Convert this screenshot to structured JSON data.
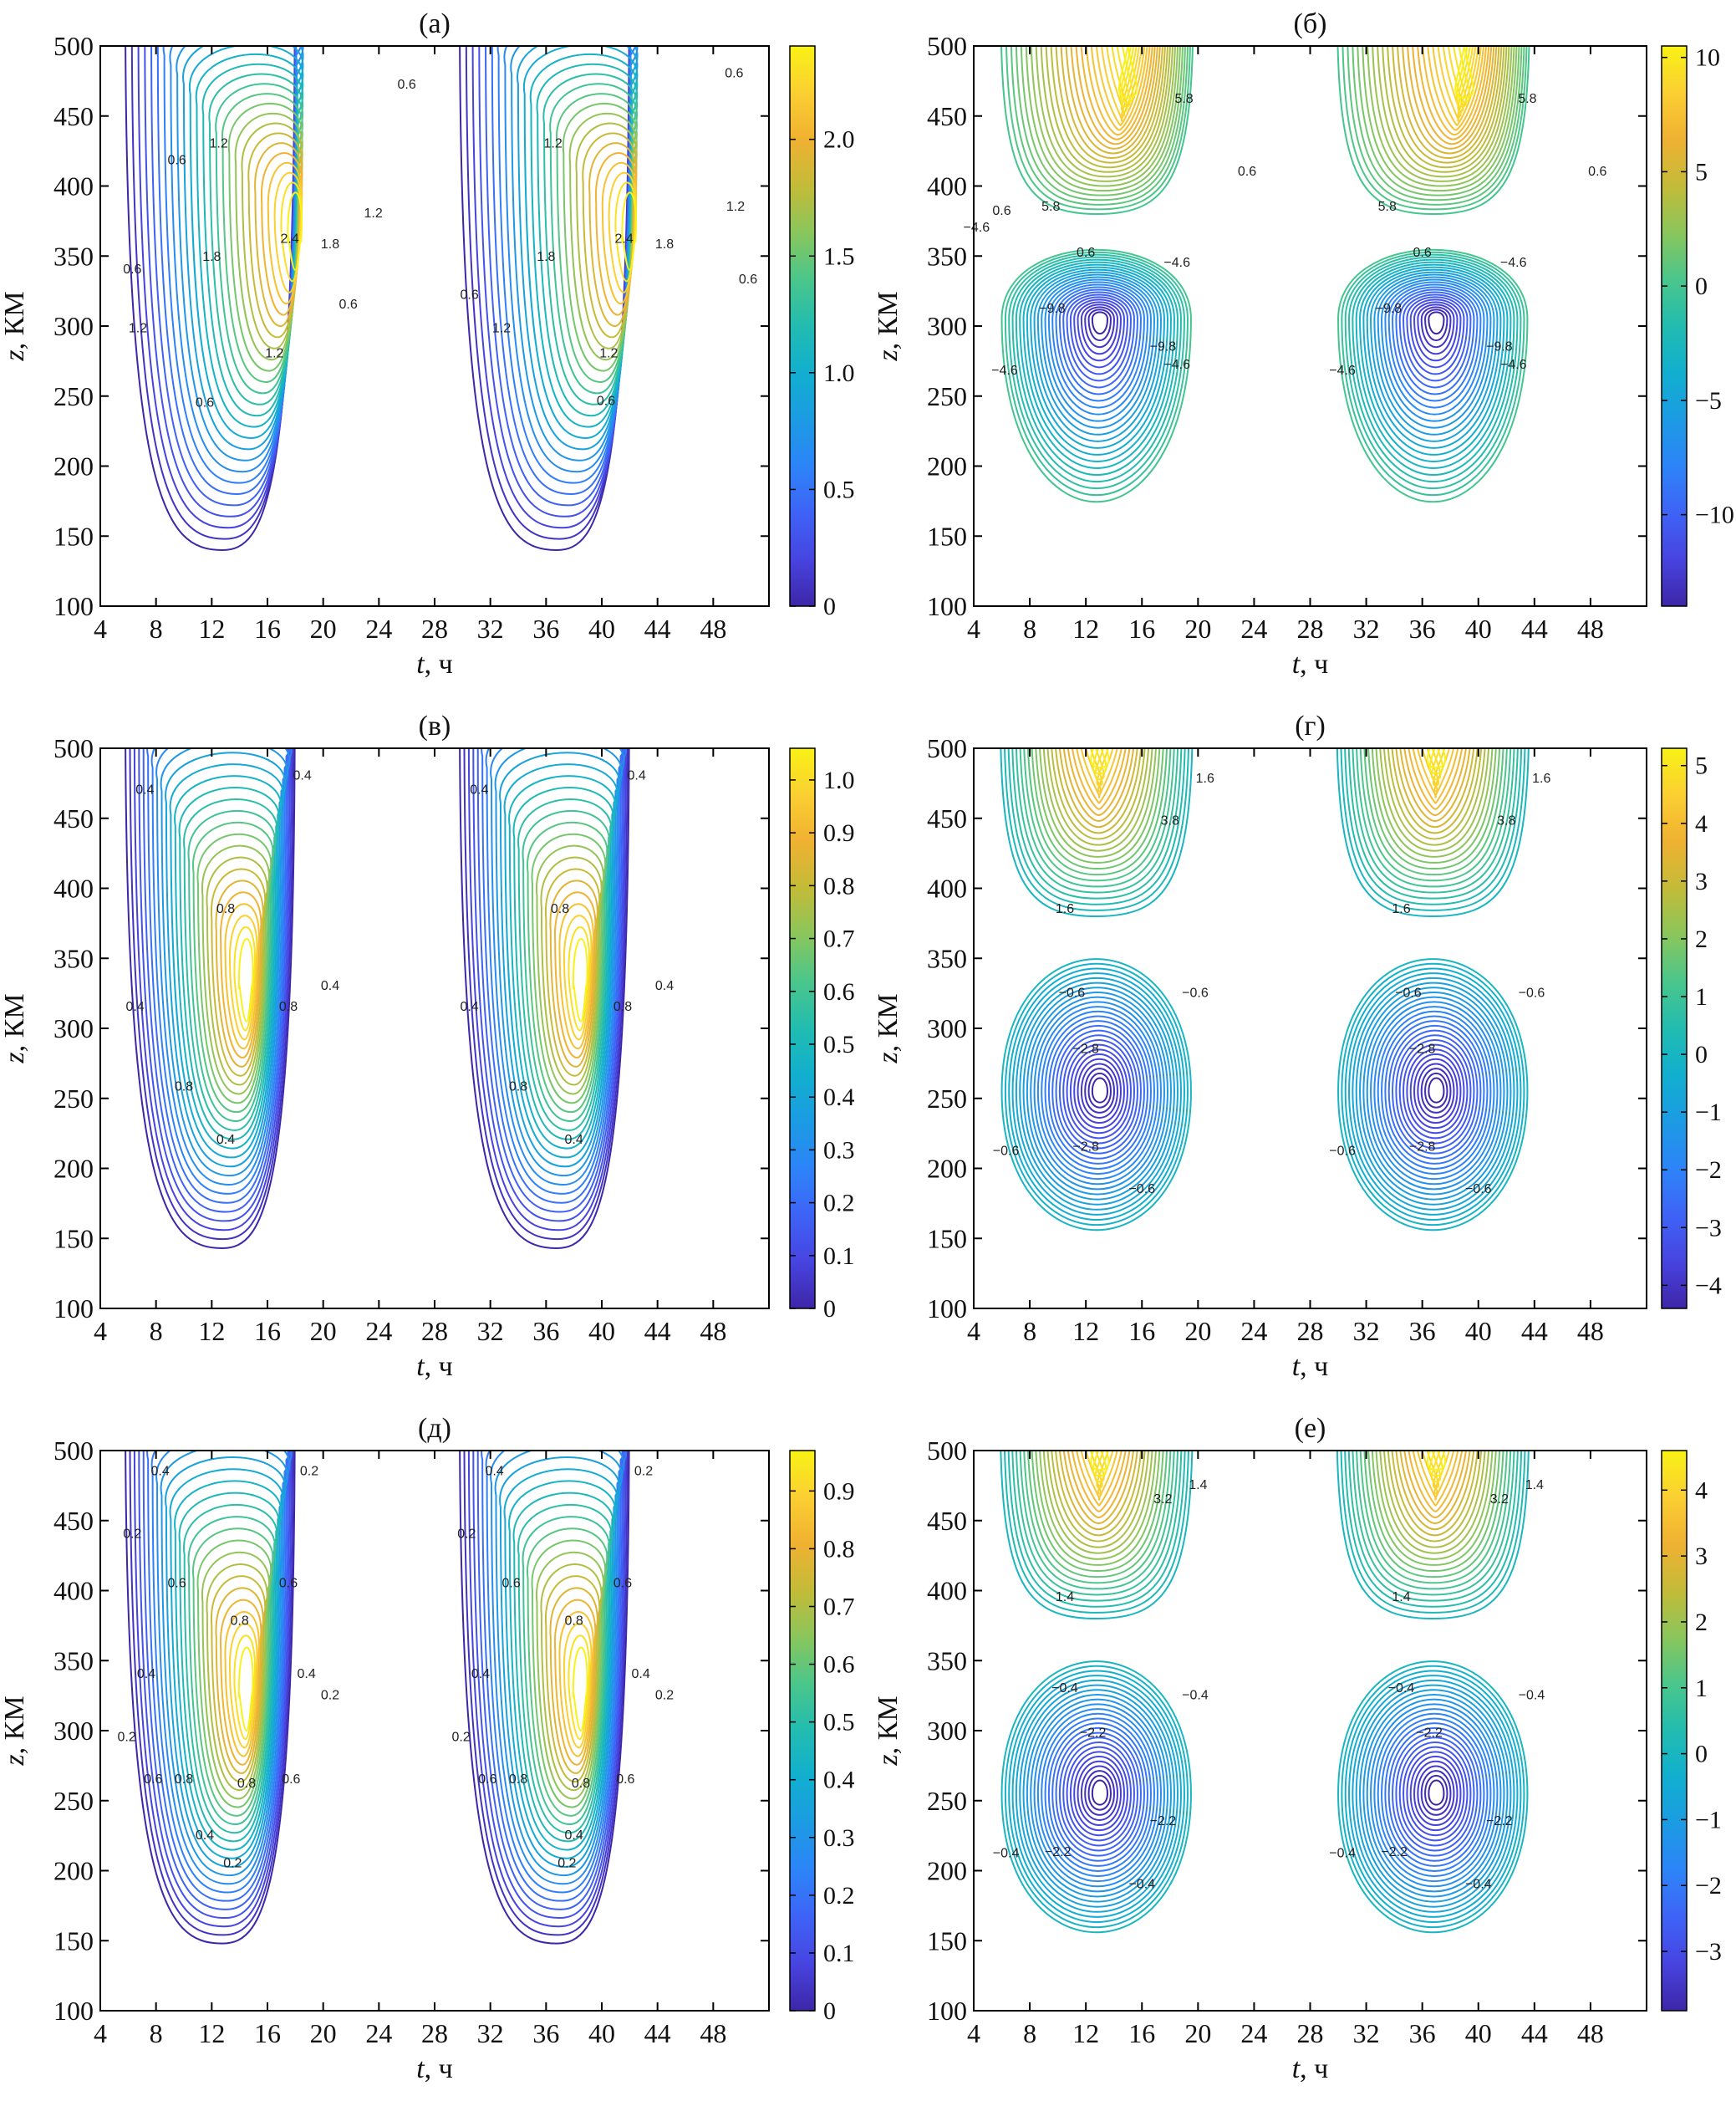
{
  "figure": {
    "colormap": [
      "#3e26a8",
      "#4744e0",
      "#3e63f6",
      "#2d84f8",
      "#1c9be3",
      "#11afcf",
      "#22bcb0",
      "#4ac68b",
      "#8ac65c",
      "#c3bb38",
      "#f0b132",
      "#fbcf32",
      "#f9f216"
    ]
  },
  "chart_data": [
    {
      "id": "a",
      "type": "contour",
      "title": "(а)",
      "xlabel_var": "t",
      "xlabel_unit": ", ч",
      "ylabel_var": "z",
      "ylabel_unit": ", КМ",
      "xlim": [
        4,
        52
      ],
      "ylim": [
        100,
        500
      ],
      "xticks": [
        4,
        8,
        12,
        16,
        20,
        24,
        28,
        32,
        36,
        40,
        44,
        48
      ],
      "yticks": [
        100,
        150,
        200,
        250,
        300,
        350,
        400,
        450,
        500
      ],
      "colorbar": {
        "min": 0,
        "max": 2.4,
        "ticks": [
          "0",
          "0.5",
          "1.0",
          "1.5",
          "2.0"
        ],
        "tick_values": [
          0,
          0.5,
          1.0,
          1.5,
          2.0
        ]
      },
      "peaks": [
        {
          "t": 18,
          "z": 340,
          "value": 2.4,
          "bottom_z": 140,
          "start_t": 6
        },
        {
          "t": 42,
          "z": 340,
          "value": 2.4,
          "bottom_z": 140,
          "start_t": 30
        }
      ],
      "contour_labels": [
        {
          "t": 6.3,
          "z": 340,
          "text": "0.6"
        },
        {
          "t": 9.5,
          "z": 418,
          "text": "0.6"
        },
        {
          "t": 12.5,
          "z": 430,
          "text": "1.2"
        },
        {
          "t": 12,
          "z": 349,
          "text": "1.8"
        },
        {
          "t": 17.6,
          "z": 362,
          "text": "2.4"
        },
        {
          "t": 20.5,
          "z": 358,
          "text": "1.8"
        },
        {
          "t": 23.6,
          "z": 380,
          "text": "1.2"
        },
        {
          "t": 21.8,
          "z": 315,
          "text": "0.6"
        },
        {
          "t": 6.7,
          "z": 298,
          "text": "1.2"
        },
        {
          "t": 16.5,
          "z": 280,
          "text": "1.2"
        },
        {
          "t": 11.5,
          "z": 245,
          "text": "0.6"
        },
        {
          "t": 26,
          "z": 472,
          "text": "0.6"
        },
        {
          "t": 30.5,
          "z": 322,
          "text": "0.6"
        },
        {
          "t": 32.8,
          "z": 298,
          "text": "1.2"
        },
        {
          "t": 36.5,
          "z": 430,
          "text": "1.2"
        },
        {
          "t": 36,
          "z": 349,
          "text": "1.8"
        },
        {
          "t": 41.6,
          "z": 362,
          "text": "2.4"
        },
        {
          "t": 44.5,
          "z": 358,
          "text": "1.8"
        },
        {
          "t": 49.6,
          "z": 385,
          "text": "1.2"
        },
        {
          "t": 40.5,
          "z": 280,
          "text": "1.2"
        },
        {
          "t": 40.3,
          "z": 246,
          "text": "0.6"
        },
        {
          "t": 49.5,
          "z": 480,
          "text": "0.6"
        },
        {
          "t": 50.5,
          "z": 333,
          "text": "0.6"
        }
      ]
    },
    {
      "id": "b",
      "type": "contour",
      "title": "(б)",
      "xlabel_var": "t",
      "xlabel_unit": ", ч",
      "ylabel_var": "z",
      "ylabel_unit": ", КМ",
      "xlim": [
        4,
        52
      ],
      "ylim": [
        100,
        500
      ],
      "xticks": [
        4,
        8,
        12,
        16,
        20,
        24,
        28,
        32,
        36,
        40,
        44,
        48
      ],
      "yticks": [
        100,
        150,
        200,
        250,
        300,
        350,
        400,
        450,
        500
      ],
      "colorbar": {
        "min": -14,
        "max": 10.5,
        "ticks": [
          "−10",
          "−5",
          "0",
          "5",
          "10"
        ],
        "tick_values": [
          -10,
          -5,
          0,
          5,
          10
        ]
      },
      "peaks": [
        {
          "t": 15,
          "z": 478,
          "value": 10.5,
          "bottom_z": 160,
          "start_t": 6,
          "low_z": 305,
          "low_t": 13,
          "low_value": -14
        },
        {
          "t": 39,
          "z": 478,
          "value": 10.5,
          "bottom_z": 160,
          "start_t": 30,
          "low_z": 305,
          "low_t": 37,
          "low_value": -14
        }
      ],
      "contour_labels": [
        {
          "t": 4.2,
          "z": 370,
          "text": "−4.6"
        },
        {
          "t": 6,
          "z": 382,
          "text": "0.6"
        },
        {
          "t": 9.5,
          "z": 385,
          "text": "5.8"
        },
        {
          "t": 19,
          "z": 462,
          "text": "5.8"
        },
        {
          "t": 23.5,
          "z": 410,
          "text": "0.6"
        },
        {
          "t": 12,
          "z": 352,
          "text": "0.6"
        },
        {
          "t": 18.5,
          "z": 345,
          "text": "−4.6"
        },
        {
          "t": 9.6,
          "z": 312,
          "text": "−9.8"
        },
        {
          "t": 17.5,
          "z": 285,
          "text": "−9.8"
        },
        {
          "t": 18.5,
          "z": 272,
          "text": "−4.6"
        },
        {
          "t": 6.2,
          "z": 268,
          "text": "−4.6"
        },
        {
          "t": 33.5,
          "z": 385,
          "text": "5.8"
        },
        {
          "t": 43.5,
          "z": 462,
          "text": "5.8"
        },
        {
          "t": 48.5,
          "z": 410,
          "text": "0.6"
        },
        {
          "t": 36,
          "z": 352,
          "text": "0.6"
        },
        {
          "t": 42.5,
          "z": 345,
          "text": "−4.6"
        },
        {
          "t": 33.6,
          "z": 312,
          "text": "−9.8"
        },
        {
          "t": 41.5,
          "z": 285,
          "text": "−9.8"
        },
        {
          "t": 42.5,
          "z": 272,
          "text": "−4.6"
        },
        {
          "t": 30.3,
          "z": 268,
          "text": "−4.6"
        }
      ]
    },
    {
      "id": "v",
      "type": "contour",
      "title": "(в)",
      "xlabel_var": "t",
      "xlabel_unit": ", ч",
      "ylabel_var": "z",
      "ylabel_unit": ", КМ",
      "xlim": [
        4,
        52
      ],
      "ylim": [
        100,
        500
      ],
      "xticks": [
        4,
        8,
        12,
        16,
        20,
        24,
        28,
        32,
        36,
        40,
        44,
        48
      ],
      "yticks": [
        100,
        150,
        200,
        250,
        300,
        350,
        400,
        450,
        500
      ],
      "colorbar": {
        "min": 0,
        "max": 1.06,
        "ticks": [
          "0",
          "0.1",
          "0.2",
          "0.3",
          "0.4",
          "0.5",
          "0.6",
          "0.7",
          "0.8",
          "0.9",
          "1.0"
        ],
        "tick_values": [
          0,
          0.1,
          0.2,
          0.3,
          0.4,
          0.5,
          0.6,
          0.7,
          0.8,
          0.9,
          1.0
        ]
      },
      "peaks": [
        {
          "t": 14.5,
          "z": 305,
          "value": 1.06,
          "bottom_z": 143,
          "start_t": 6
        },
        {
          "t": 38.5,
          "z": 305,
          "value": 1.06,
          "bottom_z": 143,
          "start_t": 30
        }
      ],
      "contour_labels": [
        {
          "t": 7.2,
          "z": 470,
          "text": "0.4"
        },
        {
          "t": 18.5,
          "z": 480,
          "text": "0.4"
        },
        {
          "t": 13,
          "z": 385,
          "text": "0.8"
        },
        {
          "t": 6.5,
          "z": 315,
          "text": "0.4"
        },
        {
          "t": 17.5,
          "z": 315,
          "text": "0.8"
        },
        {
          "t": 20.5,
          "z": 330,
          "text": "0.4"
        },
        {
          "t": 10,
          "z": 258,
          "text": "0.8"
        },
        {
          "t": 13,
          "z": 220,
          "text": "0.4"
        },
        {
          "t": 31.2,
          "z": 470,
          "text": "0.4"
        },
        {
          "t": 42.5,
          "z": 480,
          "text": "0.4"
        },
        {
          "t": 37,
          "z": 385,
          "text": "0.8"
        },
        {
          "t": 30.5,
          "z": 315,
          "text": "0.4"
        },
        {
          "t": 41.5,
          "z": 315,
          "text": "0.8"
        },
        {
          "t": 44.5,
          "z": 330,
          "text": "0.4"
        },
        {
          "t": 34,
          "z": 258,
          "text": "0.8"
        },
        {
          "t": 38,
          "z": 220,
          "text": "0.4"
        }
      ]
    },
    {
      "id": "g",
      "type": "contour",
      "title": "(г)",
      "xlabel_var": "t",
      "xlabel_unit": ", ч",
      "ylabel_var": "z",
      "ylabel_unit": ", КМ",
      "xlim": [
        4,
        52
      ],
      "ylim": [
        100,
        500
      ],
      "xticks": [
        4,
        8,
        12,
        16,
        20,
        24,
        28,
        32,
        36,
        40,
        44,
        48
      ],
      "yticks": [
        100,
        150,
        200,
        250,
        300,
        350,
        400,
        450,
        500
      ],
      "colorbar": {
        "min": -4.4,
        "max": 5.3,
        "ticks": [
          "−4",
          "−3",
          "−2",
          "−1",
          "0",
          "1",
          "2",
          "3",
          "4",
          "5"
        ],
        "tick_values": [
          -4,
          -3,
          -2,
          -1,
          0,
          1,
          2,
          3,
          4,
          5
        ]
      },
      "peaks": [
        {
          "t": 13,
          "z": 505,
          "value": 5.3,
          "bottom_z": 145,
          "start_t": 6,
          "low_z": 255,
          "low_t": 13,
          "low_value": -4.4
        },
        {
          "t": 37,
          "z": 505,
          "value": 5.3,
          "bottom_z": 145,
          "start_t": 30,
          "low_z": 255,
          "low_t": 37,
          "low_value": -4.4
        }
      ],
      "contour_labels": [
        {
          "t": 18,
          "z": 448,
          "text": "3.8"
        },
        {
          "t": 20.5,
          "z": 478,
          "text": "1.6"
        },
        {
          "t": 10.5,
          "z": 385,
          "text": "1.6"
        },
        {
          "t": 11,
          "z": 325,
          "text": "−0.6"
        },
        {
          "t": 19.8,
          "z": 325,
          "text": "−0.6"
        },
        {
          "t": 12,
          "z": 285,
          "text": "−2.8"
        },
        {
          "t": 12,
          "z": 215,
          "text": "−2.8"
        },
        {
          "t": 6.3,
          "z": 212,
          "text": "−0.6"
        },
        {
          "t": 16,
          "z": 185,
          "text": "−0.6"
        },
        {
          "t": 42,
          "z": 448,
          "text": "3.8"
        },
        {
          "t": 44.5,
          "z": 478,
          "text": "1.6"
        },
        {
          "t": 34.5,
          "z": 385,
          "text": "1.6"
        },
        {
          "t": 35,
          "z": 325,
          "text": "−0.6"
        },
        {
          "t": 43.8,
          "z": 325,
          "text": "−0.6"
        },
        {
          "t": 36,
          "z": 285,
          "text": "−2.8"
        },
        {
          "t": 36,
          "z": 215,
          "text": "−2.8"
        },
        {
          "t": 30.3,
          "z": 212,
          "text": "−0.6"
        },
        {
          "t": 40,
          "z": 185,
          "text": "−0.6"
        }
      ]
    },
    {
      "id": "d",
      "type": "contour",
      "title": "(д)",
      "xlabel_var": "t",
      "xlabel_unit": ", ч",
      "ylabel_var": "z",
      "ylabel_unit": ", КМ",
      "xlim": [
        4,
        52
      ],
      "ylim": [
        100,
        500
      ],
      "xticks": [
        4,
        8,
        12,
        16,
        20,
        24,
        28,
        32,
        36,
        40,
        44,
        48
      ],
      "yticks": [
        100,
        150,
        200,
        250,
        300,
        350,
        400,
        450,
        500
      ],
      "colorbar": {
        "min": 0,
        "max": 0.97,
        "ticks": [
          "0",
          "0.1",
          "0.2",
          "0.3",
          "0.4",
          "0.5",
          "0.6",
          "0.7",
          "0.8",
          "0.9"
        ],
        "tick_values": [
          0,
          0.1,
          0.2,
          0.3,
          0.4,
          0.5,
          0.6,
          0.7,
          0.8,
          0.9
        ]
      },
      "peaks": [
        {
          "t": 14.5,
          "z": 300,
          "value": 0.97,
          "bottom_z": 148,
          "start_t": 6
        },
        {
          "t": 38.5,
          "z": 300,
          "value": 0.97,
          "bottom_z": 148,
          "start_t": 30
        }
      ],
      "contour_labels": [
        {
          "t": 8.3,
          "z": 485,
          "text": "0.4"
        },
        {
          "t": 19,
          "z": 485,
          "text": "0.2"
        },
        {
          "t": 6.3,
          "z": 440,
          "text": "0.2"
        },
        {
          "t": 9.5,
          "z": 405,
          "text": "0.6"
        },
        {
          "t": 17.5,
          "z": 405,
          "text": "0.6"
        },
        {
          "t": 14,
          "z": 378,
          "text": "0.8"
        },
        {
          "t": 7.3,
          "z": 340,
          "text": "0.4"
        },
        {
          "t": 18.8,
          "z": 340,
          "text": "0.4"
        },
        {
          "t": 20.5,
          "z": 325,
          "text": "0.2"
        },
        {
          "t": 5.9,
          "z": 295,
          "text": "0.2"
        },
        {
          "t": 7.8,
          "z": 265,
          "text": "0.6"
        },
        {
          "t": 10,
          "z": 265,
          "text": "0.8"
        },
        {
          "t": 14.5,
          "z": 262,
          "text": "0.8"
        },
        {
          "t": 17.7,
          "z": 265,
          "text": "0.6"
        },
        {
          "t": 11.5,
          "z": 225,
          "text": "0.4"
        },
        {
          "t": 13.5,
          "z": 205,
          "text": "0.2"
        },
        {
          "t": 32.3,
          "z": 485,
          "text": "0.4"
        },
        {
          "t": 43,
          "z": 485,
          "text": "0.2"
        },
        {
          "t": 30.3,
          "z": 440,
          "text": "0.2"
        },
        {
          "t": 33.5,
          "z": 405,
          "text": "0.6"
        },
        {
          "t": 41.5,
          "z": 405,
          "text": "0.6"
        },
        {
          "t": 38,
          "z": 378,
          "text": "0.8"
        },
        {
          "t": 31.3,
          "z": 340,
          "text": "0.4"
        },
        {
          "t": 42.8,
          "z": 340,
          "text": "0.4"
        },
        {
          "t": 44.5,
          "z": 325,
          "text": "0.2"
        },
        {
          "t": 29.9,
          "z": 295,
          "text": "0.2"
        },
        {
          "t": 31.8,
          "z": 265,
          "text": "0.6"
        },
        {
          "t": 34,
          "z": 265,
          "text": "0.8"
        },
        {
          "t": 38.5,
          "z": 262,
          "text": "0.8"
        },
        {
          "t": 41.7,
          "z": 265,
          "text": "0.6"
        },
        {
          "t": 38,
          "z": 225,
          "text": "0.4"
        },
        {
          "t": 37.5,
          "z": 205,
          "text": "0.2"
        }
      ]
    },
    {
      "id": "e",
      "type": "contour",
      "title": "(е)",
      "xlabel_var": "t",
      "xlabel_unit": ", ч",
      "ylabel_var": "z",
      "ylabel_unit": ", КМ",
      "xlim": [
        4,
        52
      ],
      "ylim": [
        100,
        500
      ],
      "xticks": [
        4,
        8,
        12,
        16,
        20,
        24,
        28,
        32,
        36,
        40,
        44,
        48
      ],
      "yticks": [
        100,
        150,
        200,
        250,
        300,
        350,
        400,
        450,
        500
      ],
      "colorbar": {
        "min": -3.9,
        "max": 4.6,
        "ticks": [
          "−3",
          "−2",
          "−1",
          "0",
          "1",
          "2",
          "3",
          "4"
        ],
        "tick_values": [
          -3,
          -2,
          -1,
          0,
          1,
          2,
          3,
          4
        ]
      },
      "peaks": [
        {
          "t": 13,
          "z": 505,
          "value": 4.6,
          "bottom_z": 145,
          "start_t": 6,
          "low_z": 255,
          "low_t": 13,
          "low_value": -3.9
        },
        {
          "t": 37,
          "z": 505,
          "value": 4.6,
          "bottom_z": 145,
          "start_t": 30,
          "low_z": 255,
          "low_t": 37,
          "low_value": -3.9
        }
      ],
      "contour_labels": [
        {
          "t": 17.5,
          "z": 465,
          "text": "3.2"
        },
        {
          "t": 20,
          "z": 475,
          "text": "1.4"
        },
        {
          "t": 10.5,
          "z": 395,
          "text": "1.4"
        },
        {
          "t": 10.5,
          "z": 330,
          "text": "−0.4"
        },
        {
          "t": 19.8,
          "z": 325,
          "text": "−0.4"
        },
        {
          "t": 12.5,
          "z": 298,
          "text": "−2.2"
        },
        {
          "t": 17.5,
          "z": 235,
          "text": "−2.2"
        },
        {
          "t": 10,
          "z": 213,
          "text": "−2.2"
        },
        {
          "t": 6.3,
          "z": 212,
          "text": "−0.4"
        },
        {
          "t": 16,
          "z": 190,
          "text": "−0.4"
        },
        {
          "t": 41.5,
          "z": 465,
          "text": "3.2"
        },
        {
          "t": 44,
          "z": 475,
          "text": "1.4"
        },
        {
          "t": 34.5,
          "z": 395,
          "text": "1.4"
        },
        {
          "t": 34.5,
          "z": 330,
          "text": "−0.4"
        },
        {
          "t": 43.8,
          "z": 325,
          "text": "−0.4"
        },
        {
          "t": 36.5,
          "z": 298,
          "text": "−2.2"
        },
        {
          "t": 41.5,
          "z": 235,
          "text": "−2.2"
        },
        {
          "t": 34,
          "z": 213,
          "text": "−2.2"
        },
        {
          "t": 30.3,
          "z": 212,
          "text": "−0.4"
        },
        {
          "t": 40,
          "z": 190,
          "text": "−0.4"
        }
      ]
    }
  ]
}
